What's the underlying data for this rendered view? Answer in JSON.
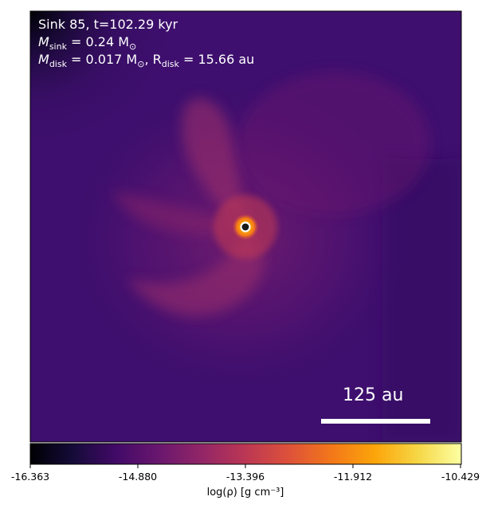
{
  "chart_data": {
    "type": "heatmap",
    "title_lines": [
      "Sink 85, t=102.29 kyr"
    ],
    "sink_mass_label": "M",
    "sink_mass_sub": "sink",
    "sink_mass_value": " = 0.24 M",
    "sink_mass_unit_sub": "⊙",
    "disk_mass_label": "M",
    "disk_mass_sub": "disk",
    "disk_mass_value": " = 0.017 M",
    "disk_mass_unit_sub": "⊙",
    "disk_radius_label": ", R",
    "disk_radius_sub": "disk",
    "disk_radius_value": " = 15.66 au",
    "colormap": "inferno",
    "colorbar": {
      "min": -16.363,
      "max": -10.429,
      "ticks": [
        "-16.363",
        "-14.880",
        "-13.396",
        "-11.912",
        "-10.429"
      ],
      "label": "log(ρ) [g cm⁻³]"
    },
    "scale_bar_label": "125 au",
    "colors": {
      "background": "#3e0f6e",
      "sink_marker_edge": "#ffffff",
      "sink_marker_fill": "#1a1a1a"
    }
  }
}
